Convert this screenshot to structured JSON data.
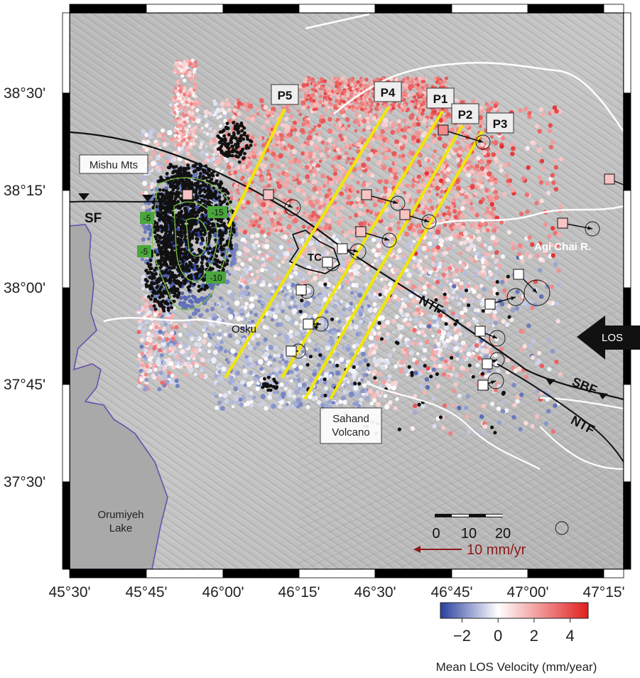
{
  "map": {
    "longitude_ticks": [
      "45°30'",
      "45°45'",
      "46°00'",
      "46°15'",
      "46°30'",
      "46°45'",
      "47°00'",
      "47°15'"
    ],
    "latitude_ticks": [
      "38°30'",
      "38°15'",
      "38°00'",
      "37°45'",
      "37°30'"
    ],
    "place_labels": {
      "mishu": "Mishu Mts",
      "sf": "SF",
      "tc": "TC",
      "osku": "Osku",
      "agi": "Agi Chai R.",
      "ntf_1": "NTF",
      "ntf_2": "NTF",
      "sbf": "SBF",
      "sahand": [
        "Sahand",
        "Volcano"
      ],
      "lake": [
        "Orumiyeh",
        "Lake"
      ]
    },
    "profiles": [
      "P5",
      "P4",
      "P1",
      "P2",
      "P3"
    ],
    "contours": [
      "-5",
      "-5",
      "-15",
      "-10"
    ],
    "los_label": "LOS",
    "scale_ticks": [
      "0",
      "10",
      "20"
    ],
    "velocity_label": "10 mm/yr"
  },
  "colorbar": {
    "ticks": [
      "−2",
      "0",
      "2",
      "4"
    ],
    "title": "Mean LOS Velocity (mm/year)",
    "range": [
      -3.2,
      5.0
    ],
    "colors": [
      "#2a3f9e",
      "#ffffff",
      "#e0201f"
    ]
  }
}
